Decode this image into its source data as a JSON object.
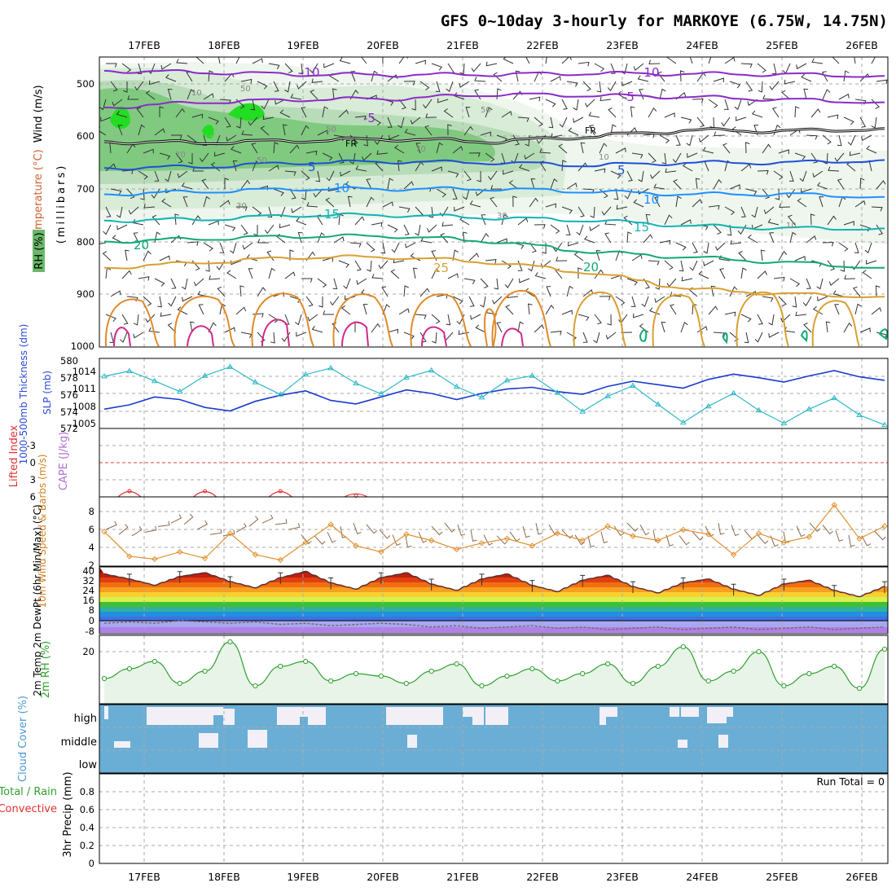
{
  "title": "GFS 0~10day 3-hourly for MARKOYE (6.75W, 14.75N)",
  "date_labels": [
    "17FEB",
    "18FEB",
    "19FEB",
    "20FEB",
    "21FEB",
    "22FEB",
    "23FEB",
    "24FEB",
    "25FEB",
    "26FEB"
  ],
  "run_total": "Run Total = 0",
  "chart_data": [
    {
      "type": "contour",
      "ylabel_parts": [
        "Wind (m/s)",
        "Temperature (°C)",
        "RH (%)",
        "(millibars)"
      ],
      "yticks": [
        "500",
        "600",
        "700",
        "800",
        "900",
        "1000"
      ],
      "ylim": [
        450,
        1000
      ],
      "temperature_contours": [
        {
          "label": "-10",
          "color": "#8b2bc8",
          "levels_mb": [
            475,
            478,
            482,
            483,
            482,
            480,
            481,
            482,
            485
          ]
        },
        {
          "label": "-5",
          "color": "#8b2bc8",
          "levels_mb": [
            545,
            535,
            530,
            528,
            520,
            522,
            525,
            530,
            535
          ]
        },
        {
          "label": "FR",
          "color": "#000000",
          "levels_mb": [
            610,
            612,
            608,
            605,
            610,
            600,
            588,
            590,
            585
          ]
        },
        {
          "label": "5",
          "color": "#1f4fd8",
          "levels_mb": [
            660,
            658,
            650,
            648,
            650,
            655,
            650,
            650,
            645
          ]
        },
        {
          "label": "10",
          "color": "#1e90ff",
          "levels_mb": [
            710,
            705,
            700,
            700,
            700,
            705,
            710,
            710,
            715
          ]
        },
        {
          "label": "15",
          "color": "#10b3b3",
          "levels_mb": [
            760,
            758,
            750,
            750,
            755,
            760,
            770,
            775,
            775
          ]
        },
        {
          "label": "20",
          "color": "#12a878",
          "levels_mb": [
            800,
            795,
            790,
            790,
            800,
            820,
            830,
            840,
            850
          ]
        },
        {
          "label": "25",
          "color": "#d8a030",
          "levels_mb": [
            850,
            840,
            830,
            830,
            840,
            860,
            890,
            900,
            905
          ]
        }
      ],
      "rh_labels": [
        "10",
        "30",
        "50",
        "70"
      ]
    },
    {
      "type": "line",
      "ylabel_left": "1000-500mb Thickness (dm)",
      "ylabel_right": "SLP (mb)",
      "yticks_left": [
        "572",
        "574",
        "576",
        "578",
        "580"
      ],
      "yticks_right": [
        "1005",
        "1008",
        "1011",
        "1014"
      ],
      "series": [
        {
          "name": "Thickness",
          "color": "#1a3ad0",
          "values": [
            574.2,
            574.7,
            575.6,
            575.3,
            574.4,
            574.0,
            575.1,
            575.8,
            576.3,
            575.2,
            574.8,
            575.6,
            576.4,
            576.0,
            575.3,
            576.0,
            576.5,
            576.7,
            576.2,
            575.9,
            576.8,
            577.4,
            577.0,
            576.6,
            577.6,
            578.2,
            577.8,
            577.3,
            578.0,
            578.6,
            577.9,
            577.5
          ]
        },
        {
          "name": "SLP",
          "color": "#2cb8c8",
          "values": [
            1013.2,
            1014.1,
            1012.4,
            1010.6,
            1013.3,
            1014.8,
            1012.2,
            1010.1,
            1013.5,
            1014.6,
            1012.0,
            1010.2,
            1013.0,
            1014.2,
            1011.4,
            1009.6,
            1012.5,
            1013.3,
            1010.4,
            1007.2,
            1009.8,
            1011.6,
            1008.4,
            1005.3,
            1008.1,
            1010.3,
            1007.4,
            1005.2,
            1007.6,
            1009.5,
            1006.6,
            1004.9
          ]
        }
      ]
    },
    {
      "type": "line",
      "ylabel_left": "Lifted Index",
      "ylabel_right": "CAPE (J/kg)",
      "yticks": [
        "-3",
        "0",
        "3",
        "6"
      ],
      "series": [
        {
          "name": "Lifted Index",
          "color": "#e03030",
          "values": [
            6,
            5.0,
            6,
            6,
            5.0,
            6,
            6,
            5.0,
            6,
            6,
            5.8,
            6,
            6,
            6,
            6,
            6,
            6,
            6,
            6,
            6,
            6,
            6,
            6,
            6,
            6,
            6,
            6,
            6,
            6,
            6,
            6,
            6
          ]
        }
      ]
    },
    {
      "type": "line",
      "ylabel": "10m Wind Speed & Barbs (m/s)",
      "yticks": [
        "2",
        "4",
        "6",
        "8"
      ],
      "series": [
        {
          "name": "10m Wind Speed",
          "color": "#e09030",
          "values": [
            5.8,
            3.0,
            2.7,
            3.5,
            2.8,
            5.6,
            3.2,
            2.6,
            4.6,
            6.6,
            4.2,
            3.5,
            5.5,
            4.8,
            3.8,
            4.5,
            5.0,
            4.2,
            5.6,
            4.8,
            6.4,
            5.3,
            4.8,
            6.0,
            5.5,
            3.2,
            5.6,
            4.6,
            5.2,
            8.8,
            5.0,
            6.4
          ]
        }
      ]
    },
    {
      "type": "area",
      "ylabel": "2m Temp 2m DewPt (6hr Min/Max) (°C)",
      "yticks": [
        "-8",
        "0",
        "8",
        "16",
        "24",
        "32",
        "40"
      ],
      "series": [
        {
          "name": "2m Temp",
          "color": "#603030",
          "values": [
            37,
            33,
            28,
            35,
            38,
            31,
            26,
            34,
            39,
            30,
            25,
            34,
            38,
            29,
            24,
            33,
            37,
            28,
            23,
            32,
            36,
            27,
            22,
            30,
            33,
            25,
            20,
            29,
            32,
            24,
            19,
            27
          ]
        },
        {
          "name": "2m DewPt",
          "color": "#707070",
          "values": [
            -2,
            -1,
            -2,
            0,
            -1,
            -2,
            -1,
            -3,
            -2,
            -4,
            -3,
            -2,
            -3,
            -5,
            -4,
            -6,
            -5,
            -4,
            -6,
            -5,
            -7,
            -6,
            -5,
            -7,
            -6,
            -5,
            -7,
            -6,
            -5,
            -7,
            -6,
            -5
          ]
        }
      ]
    },
    {
      "type": "line",
      "ylabel": "2m RH (%)",
      "yticks": [
        "20"
      ],
      "series": [
        {
          "name": "2m RH",
          "color": "#30a030",
          "values": [
            9,
            13,
            16,
            7,
            12,
            24,
            6,
            14,
            16,
            8,
            11,
            10,
            7,
            12,
            15,
            6,
            10,
            13,
            8,
            11,
            15,
            7,
            14,
            22,
            8,
            12,
            20,
            6,
            11,
            14,
            5,
            21
          ]
        }
      ]
    },
    {
      "type": "bar",
      "ylabel": "Cloud Cover (%)",
      "levels": [
        "high",
        "middle",
        "low"
      ]
    },
    {
      "type": "bar",
      "ylabel_parts": [
        "Total / Rain",
        "Convective",
        "3hr Precip (mm)"
      ],
      "yticks": [
        "0",
        "0.2",
        "0.4",
        "0.6",
        "0.8"
      ],
      "ylim": [
        0,
        1
      ],
      "values": []
    }
  ]
}
